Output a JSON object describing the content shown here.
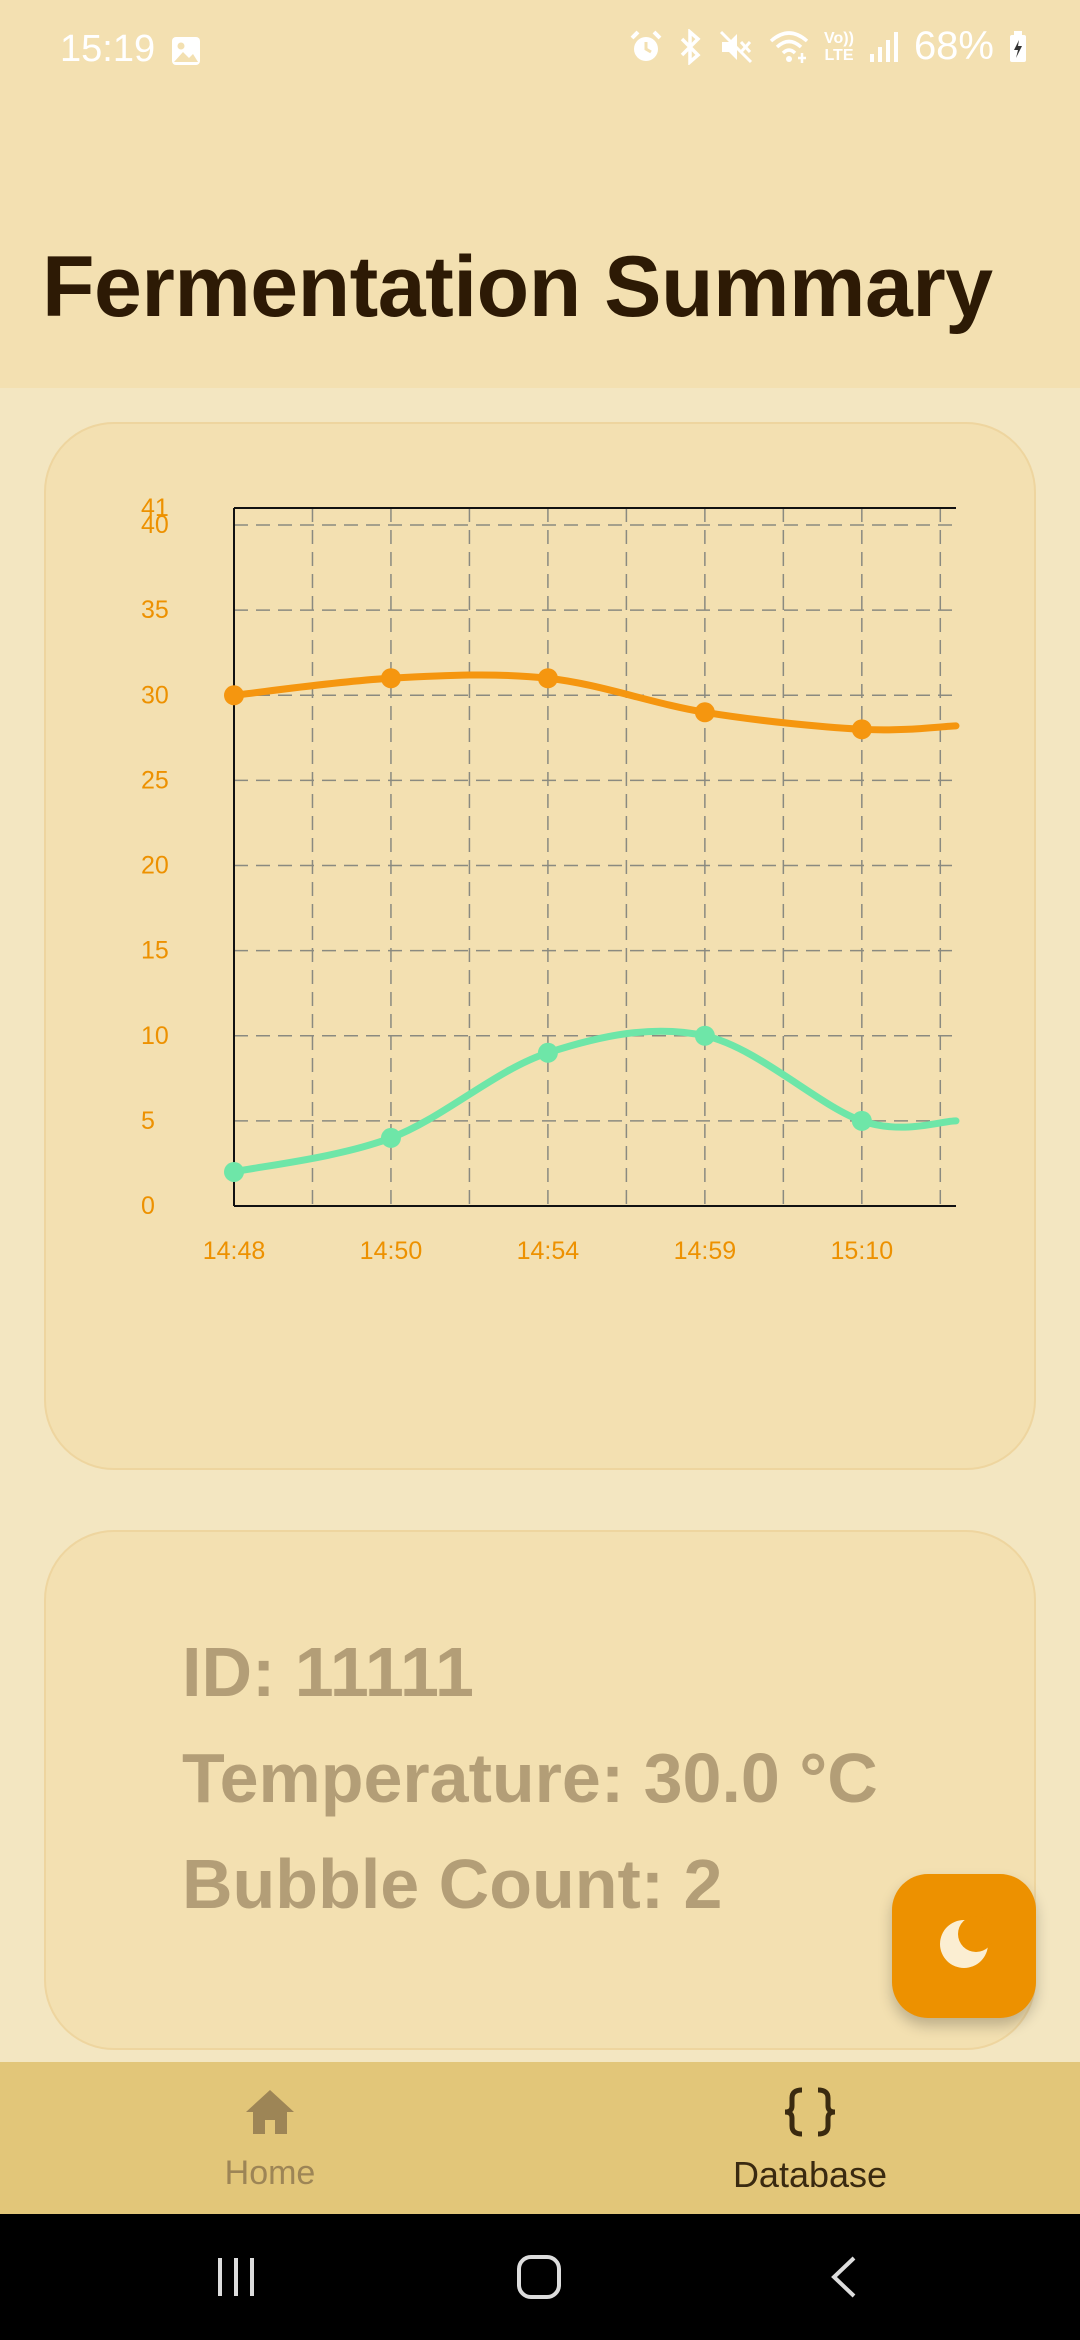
{
  "status_bar": {
    "time": "15:19",
    "battery": "68%",
    "icons": [
      "gallery-icon",
      "alarm-icon",
      "bluetooth-icon",
      "mute-icon",
      "wifi-icon",
      "volte-icon",
      "signal-icon",
      "battery-icon"
    ],
    "volte_top": "Vo))",
    "volte_bottom": "LTE"
  },
  "header": {
    "title": "Fermentation Summary"
  },
  "chart_data": {
    "type": "line",
    "categories": [
      "14:48",
      "14:50",
      "14:54",
      "14:59",
      "15:10"
    ],
    "x_tick_labels": [
      "14:48",
      "14:50",
      "14:54",
      "14:59",
      "15:10"
    ],
    "y_tick_labels": [
      "0",
      "5",
      "10",
      "15",
      "20",
      "25",
      "30",
      "35",
      "40",
      "41"
    ],
    "ylim": [
      0,
      41
    ],
    "grid": true,
    "grid_style": "dashed",
    "tick_color": "#ed9100",
    "series": [
      {
        "color": "#f5960f",
        "values": [
          30.0,
          31.0,
          31.0,
          29.0,
          28.0
        ],
        "tail": 28.2
      },
      {
        "color": "#6ee6a8",
        "values": [
          2.0,
          4.0,
          9.0,
          10.0,
          5.0
        ],
        "tail": 5.0
      }
    ]
  },
  "info": {
    "id_line": "ID: 11111",
    "temperature_line": "Temperature: 30.0 °C",
    "bubble_line": "Bubble Count: 2"
  },
  "fab": {
    "icon": "moon-icon",
    "color": "#ed9100"
  },
  "bottom_nav": {
    "items": [
      {
        "label": "Home",
        "icon": "home-icon",
        "selected": false
      },
      {
        "label": "Database",
        "icon": "braces-icon",
        "selected": true
      }
    ]
  },
  "system_nav": {
    "icons": [
      "recents-icon",
      "home-button-icon",
      "back-icon"
    ]
  }
}
